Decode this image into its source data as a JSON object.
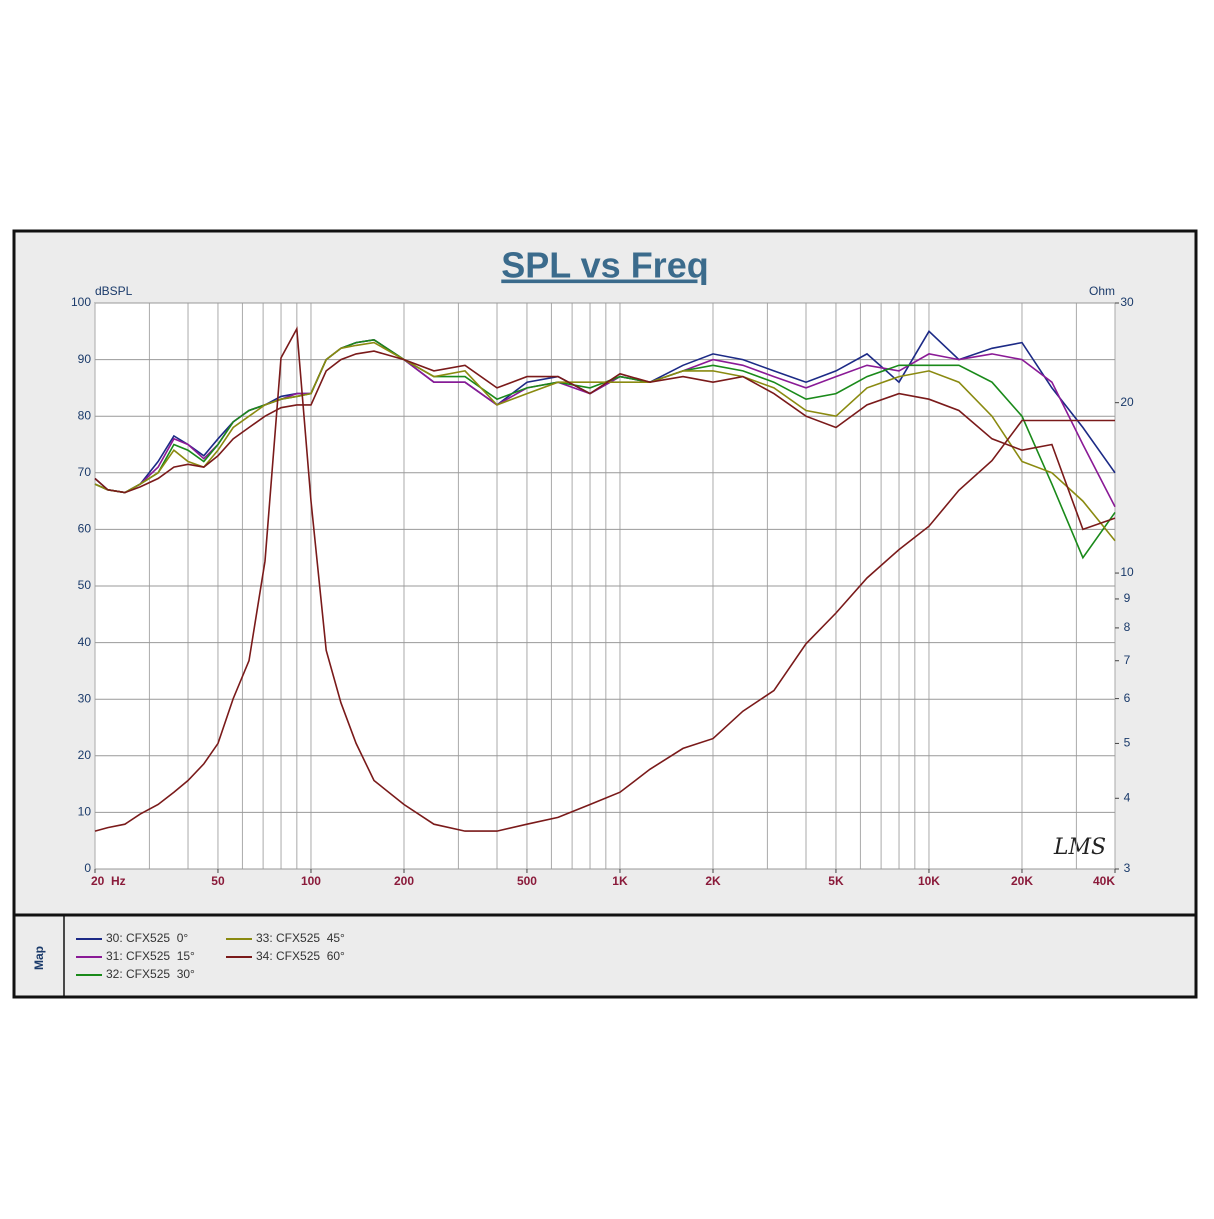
{
  "chart_data": {
    "type": "line",
    "title": "SPL vs Freq",
    "y_label": "dBSPL",
    "y2_label": "Ohm",
    "watermark": "LMS",
    "side_label": "Map",
    "log_x": true,
    "log_y2": true,
    "grid": true,
    "xlim": [
      20,
      40000
    ],
    "ylim": [
      0,
      100
    ],
    "y2lim": [
      3,
      30
    ],
    "xticks": [
      {
        "value": 20,
        "label": "20  Hz"
      },
      50,
      100,
      200,
      500,
      {
        "value": 1000,
        "label": "1K"
      },
      {
        "value": 2000,
        "label": "2K"
      },
      {
        "value": 5000,
        "label": "5K"
      },
      {
        "value": 10000,
        "label": "10K"
      },
      {
        "value": 20000,
        "label": "20K"
      },
      {
        "value": 40000,
        "label": "40K"
      }
    ],
    "xgrid": [
      20,
      30,
      40,
      50,
      60,
      70,
      80,
      90,
      100,
      200,
      300,
      400,
      500,
      600,
      700,
      800,
      900,
      1000,
      2000,
      3000,
      4000,
      5000,
      6000,
      7000,
      8000,
      9000,
      10000,
      20000,
      30000,
      40000
    ],
    "yticks": [
      0,
      10,
      20,
      30,
      40,
      50,
      60,
      70,
      80,
      90,
      100
    ],
    "y2ticks": [
      3,
      4,
      5,
      6,
      7,
      8,
      9,
      10,
      20,
      30
    ],
    "x": [
      20,
      22,
      25,
      28,
      32,
      36,
      40,
      45,
      50,
      56,
      63,
      71,
      80,
      90,
      100,
      112,
      125,
      140,
      160,
      200,
      250,
      315,
      400,
      500,
      630,
      800,
      1000,
      1250,
      1600,
      2000,
      2500,
      3150,
      4000,
      5000,
      6300,
      8000,
      10000,
      12500,
      16000,
      20000,
      25000,
      31500,
      40000
    ],
    "series": [
      {
        "name": "30: CFX525  0°",
        "color": "#1c2a86",
        "values": [
          69,
          67,
          66.5,
          68,
          72,
          76.5,
          75,
          73,
          76,
          79,
          81,
          82,
          83.5,
          84,
          84,
          90,
          92,
          93,
          93.5,
          90,
          86,
          86,
          82,
          86,
          87,
          84,
          87,
          86,
          89,
          91,
          90,
          88,
          86,
          88,
          91,
          86,
          95,
          90,
          92,
          93,
          85,
          78,
          70
        ]
      },
      {
        "name": "31: CFX525  15°",
        "color": "#8a1a96",
        "values": [
          68,
          67,
          66.5,
          68,
          71,
          76,
          75,
          72.5,
          75,
          79,
          81,
          82,
          83,
          84,
          84,
          90,
          92,
          93,
          93.5,
          90,
          86,
          86,
          82,
          85,
          86,
          84,
          87,
          86,
          88,
          90,
          89,
          87,
          85,
          87,
          89,
          88,
          91,
          90,
          91,
          90,
          86,
          75,
          64
        ]
      },
      {
        "name": "32: CFX525  30°",
        "color": "#1a8a1a",
        "values": [
          68,
          67,
          66.5,
          68,
          70,
          75,
          74,
          72,
          75,
          79,
          81,
          82,
          83,
          83.5,
          84,
          90,
          92,
          93,
          93.5,
          90,
          87,
          87,
          83,
          85,
          86,
          85,
          87,
          86,
          88,
          89,
          88,
          86,
          83,
          84,
          87,
          89,
          89,
          89,
          86,
          80,
          68,
          55,
          63
        ]
      },
      {
        "name": "33: CFX525  45°",
        "color": "#8a8a10",
        "values": [
          68,
          67,
          66.5,
          68,
          70,
          74,
          72,
          71,
          74,
          78,
          80,
          82,
          83,
          83.5,
          84,
          90,
          92,
          92.5,
          93,
          90,
          87,
          88,
          82,
          84,
          86,
          86,
          86,
          86,
          88,
          88,
          87,
          85,
          81,
          80,
          85,
          87,
          88,
          86,
          80,
          72,
          70,
          65,
          58
        ]
      },
      {
        "name": "34: CFX525  60°",
        "color": "#7a1a1a",
        "values": [
          69,
          67,
          66.5,
          67.5,
          69,
          71,
          71.5,
          71,
          73,
          76,
          78,
          80,
          81.5,
          82,
          82,
          88,
          90,
          91,
          91.5,
          90,
          88,
          89,
          85,
          87,
          87,
          84,
          87.5,
          86,
          87,
          86,
          87,
          84,
          80,
          78,
          82,
          84,
          83,
          81,
          76,
          74,
          75,
          60,
          62
        ]
      },
      {
        "color": "#7a1a1a",
        "axis": "y2",
        "values": [
          3.5,
          3.55,
          3.6,
          3.75,
          3.9,
          4.1,
          4.3,
          4.6,
          5.0,
          6.0,
          7.0,
          10.5,
          24,
          27,
          13.4,
          7.3,
          5.9,
          5.0,
          4.3,
          3.9,
          3.6,
          3.5,
          3.5,
          3.6,
          3.7,
          3.9,
          4.1,
          4.5,
          4.9,
          5.1,
          5.7,
          6.2,
          7.5,
          8.5,
          9.8,
          11,
          12.1,
          14,
          15.8,
          18.6,
          18.6,
          18.6,
          18.6
        ]
      }
    ]
  }
}
